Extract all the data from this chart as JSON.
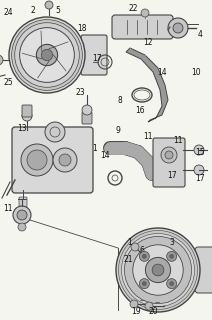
{
  "bg_color": "#f5f5f0",
  "line_color": "#444444",
  "text_color": "#111111",
  "fig_width": 2.12,
  "fig_height": 3.2,
  "dpi": 100
}
